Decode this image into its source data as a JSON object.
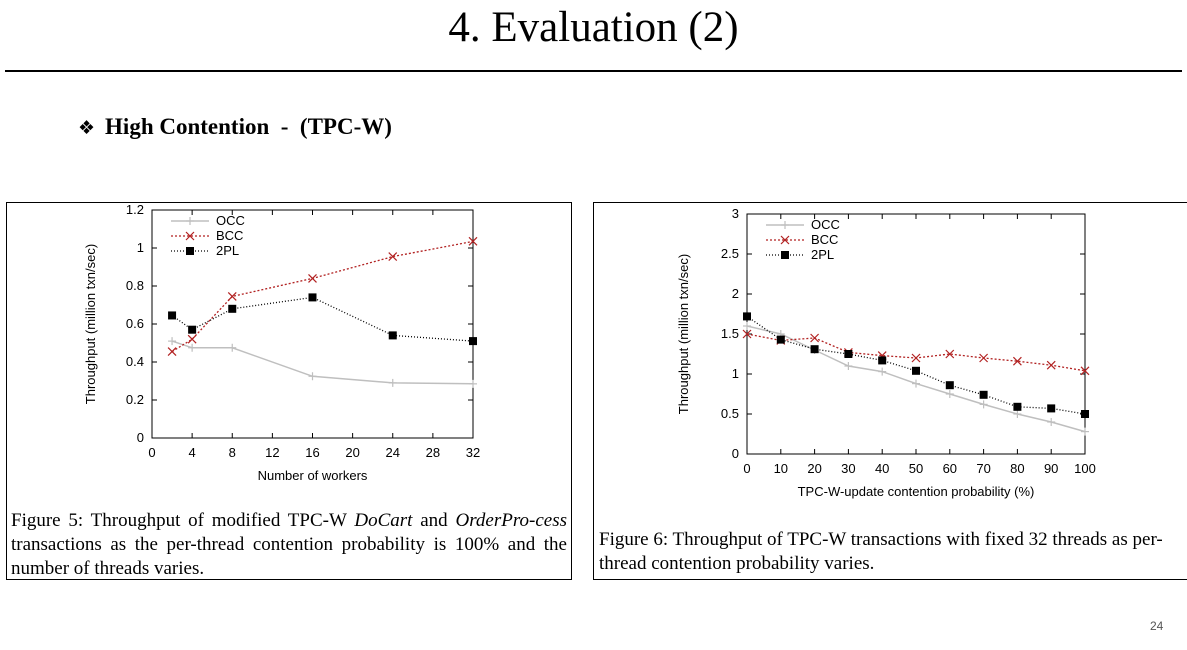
{
  "slide": {
    "title": "4. Evaluation (2)",
    "bullet_text": "High Contention  -  (TPC-W)",
    "bullet_icon": "diamond-bullet-icon",
    "page_number": "24"
  },
  "colors": {
    "occ": "#bfbfbf",
    "bcc": "#b22222",
    "twopl": "#000000"
  },
  "figures": [
    {
      "caption": {
        "prefix": "Figure 5: Throughput of modified TPC-W ",
        "em1": "DoCart",
        "mid": " and ",
        "em2": "OrderPro-cess",
        "suffix": " transactions as the per-thread contention probability is 100% and the number of threads varies."
      }
    },
    {
      "caption": {
        "text": "Figure 6: Throughput of TPC-W transactions with fixed 32 threads as per-thread contention probability varies."
      }
    }
  ],
  "chart_data": [
    {
      "type": "line",
      "title": "",
      "xlabel": "Number of workers",
      "ylabel": "Throughput (million txn/sec)",
      "xlim": [
        0,
        32
      ],
      "ylim": [
        0,
        1.2
      ],
      "xticks": [
        0,
        4,
        8,
        12,
        16,
        20,
        24,
        28,
        32
      ],
      "yticks": [
        0,
        0.2,
        0.4,
        0.6,
        0.8,
        1,
        1.2
      ],
      "legend_position": "top-left",
      "series": [
        {
          "name": "OCC",
          "marker": "plus",
          "x": [
            2,
            4,
            8,
            16,
            24,
            32
          ],
          "values": [
            0.51,
            0.475,
            0.475,
            0.325,
            0.29,
            0.285
          ]
        },
        {
          "name": "BCC",
          "marker": "cross",
          "x": [
            2,
            4,
            8,
            16,
            24,
            32
          ],
          "values": [
            0.455,
            0.52,
            0.745,
            0.84,
            0.955,
            1.035
          ]
        },
        {
          "name": "2PL",
          "marker": "square",
          "x": [
            2,
            4,
            8,
            16,
            24,
            32
          ],
          "values": [
            0.645,
            0.57,
            0.68,
            0.74,
            0.54,
            0.51
          ]
        }
      ]
    },
    {
      "type": "line",
      "title": "",
      "xlabel": "TPC-W-update contention probability (%)",
      "ylabel": "Throughput (million txn/sec)",
      "xlim": [
        0,
        100
      ],
      "ylim": [
        0,
        3
      ],
      "xticks": [
        0,
        10,
        20,
        30,
        40,
        50,
        60,
        70,
        80,
        90,
        100
      ],
      "yticks": [
        0,
        0.5,
        1,
        1.5,
        2,
        2.5,
        3
      ],
      "legend_position": "top-left",
      "series": [
        {
          "name": "OCC",
          "marker": "plus",
          "x": [
            0,
            10,
            20,
            30,
            40,
            50,
            60,
            70,
            80,
            90,
            100
          ],
          "values": [
            1.6,
            1.5,
            1.3,
            1.1,
            1.03,
            0.88,
            0.75,
            0.62,
            0.5,
            0.4,
            0.28
          ]
        },
        {
          "name": "BCC",
          "marker": "cross",
          "x": [
            0,
            10,
            20,
            30,
            40,
            50,
            60,
            70,
            80,
            90,
            100
          ],
          "values": [
            1.5,
            1.42,
            1.45,
            1.27,
            1.23,
            1.2,
            1.25,
            1.2,
            1.16,
            1.11,
            1.04
          ]
        },
        {
          "name": "2PL",
          "marker": "square",
          "x": [
            0,
            10,
            20,
            30,
            40,
            50,
            60,
            70,
            80,
            90,
            100
          ],
          "values": [
            1.72,
            1.43,
            1.31,
            1.25,
            1.17,
            1.04,
            0.86,
            0.74,
            0.59,
            0.57,
            0.5
          ]
        }
      ]
    }
  ]
}
